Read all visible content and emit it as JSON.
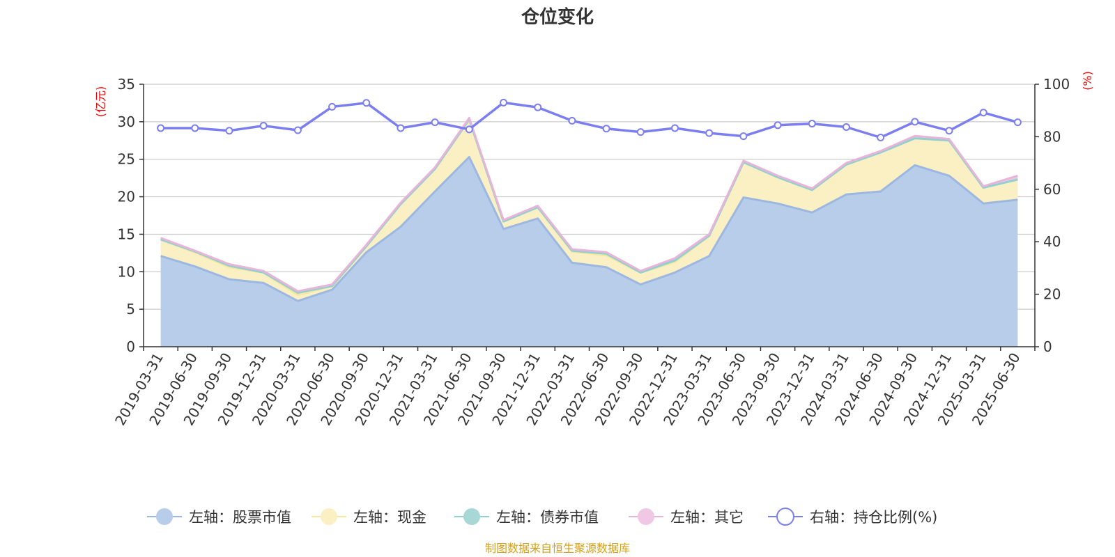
{
  "title": "仓位变化",
  "source_note": "制图数据来自恒生聚源数据库",
  "chart_data": {
    "type": "area",
    "categories": [
      "2019-03-31",
      "2019-06-30",
      "2019-09-30",
      "2019-12-31",
      "2020-03-31",
      "2020-06-30",
      "2020-09-30",
      "2020-12-31",
      "2021-03-31",
      "2021-06-30",
      "2021-09-30",
      "2021-12-31",
      "2022-03-31",
      "2022-06-30",
      "2022-09-30",
      "2022-12-31",
      "2023-03-31",
      "2023-06-30",
      "2023-09-30",
      "2023-12-31",
      "2024-03-31",
      "2024-06-30",
      "2024-09-30",
      "2024-12-31",
      "2025-03-31",
      "2025-06-30"
    ],
    "left_axis": {
      "unit": "(亿元)",
      "ylim": [
        0,
        35
      ],
      "ticks": [
        0,
        5,
        10,
        15,
        20,
        25,
        30,
        35
      ]
    },
    "right_axis": {
      "unit": "(%)",
      "ylim": [
        0,
        100
      ],
      "ticks": [
        0,
        20,
        40,
        60,
        80,
        100
      ]
    },
    "grid": true,
    "legend_position": "bottom",
    "stacked_series": [
      {
        "name": "左轴：股票市值",
        "color": "#9cb8e0",
        "fill": "#b7cdea",
        "values": [
          12.1,
          10.7,
          9.0,
          8.5,
          6.1,
          7.6,
          12.6,
          16.0,
          20.7,
          25.3,
          15.7,
          17.1,
          11.2,
          10.6,
          8.3,
          9.9,
          12.1,
          19.9,
          19.1,
          17.9,
          20.3,
          20.7,
          24.2,
          22.8,
          19.1,
          19.6
        ]
      },
      {
        "name": "左轴：现金",
        "color": "#f5e6a0",
        "fill": "#fbefc4",
        "values": [
          2.2,
          1.9,
          1.6,
          1.4,
          0.8,
          0.5,
          0.8,
          3.0,
          3.0,
          5.0,
          1.0,
          1.5,
          1.5,
          1.6,
          1.6,
          1.4,
          2.7,
          4.7,
          3.5,
          3.0,
          4.0,
          5.2,
          3.6,
          4.7,
          2.1,
          2.7
        ]
      },
      {
        "name": "左轴：债券市值",
        "color": "#8fd0d0",
        "fill": "#a7d8d6",
        "values": [
          0.0,
          0.1,
          0.2,
          0.0,
          0.3,
          0.0,
          0.0,
          0.0,
          0.0,
          0.0,
          0.0,
          0.0,
          0.1,
          0.2,
          0.0,
          0.2,
          0.0,
          0.0,
          0.0,
          0.0,
          0.0,
          0.0,
          0.0,
          0.0,
          0.0,
          0.0
        ]
      },
      {
        "name": "左轴：其它",
        "color": "#e8b4d8",
        "fill": "#f0c8e4",
        "values": [
          0.2,
          0.1,
          0.2,
          0.2,
          0.2,
          0.2,
          0.2,
          0.2,
          0.2,
          0.2,
          0.2,
          0.2,
          0.2,
          0.2,
          0.2,
          0.3,
          0.2,
          0.2,
          0.2,
          0.2,
          0.2,
          0.2,
          0.3,
          0.2,
          0.2,
          0.5
        ]
      }
    ],
    "line_series": {
      "name": "右轴：持仓比例(%)",
      "color": "#7b7ef0",
      "values": [
        83.3,
        83.3,
        82.3,
        84.2,
        82.5,
        91.4,
        92.9,
        83.3,
        85.5,
        82.8,
        93.0,
        91.2,
        86.1,
        83.1,
        81.8,
        83.3,
        81.4,
        80.2,
        84.4,
        85.0,
        83.7,
        79.7,
        85.7,
        82.3,
        89.2,
        85.5
      ]
    }
  }
}
